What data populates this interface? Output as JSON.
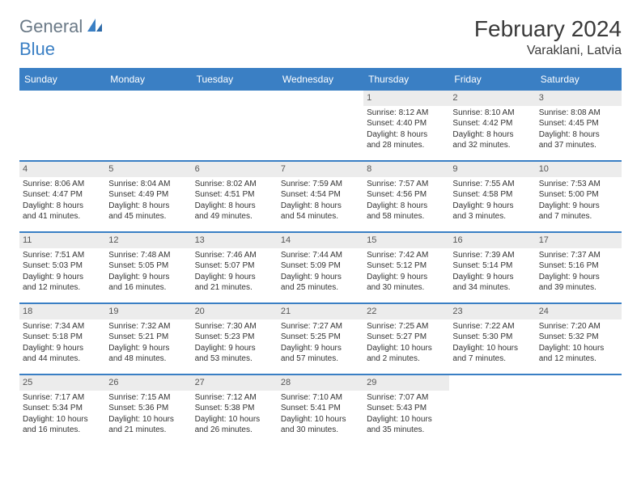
{
  "logo": {
    "text1": "General",
    "text2": "Blue"
  },
  "title": "February 2024",
  "location": "Varaklani, Latvia",
  "colors": {
    "accent": "#3a7fc4",
    "header_text": "#ffffff",
    "day_bar_bg": "#ececec",
    "text": "#333333",
    "logo_gray": "#6b7a87"
  },
  "weekdays": [
    "Sunday",
    "Monday",
    "Tuesday",
    "Wednesday",
    "Thursday",
    "Friday",
    "Saturday"
  ],
  "weeks": [
    [
      {
        "empty": true
      },
      {
        "empty": true
      },
      {
        "empty": true
      },
      {
        "empty": true
      },
      {
        "num": "1",
        "sunrise": "Sunrise: 8:12 AM",
        "sunset": "Sunset: 4:40 PM",
        "daylight1": "Daylight: 8 hours",
        "daylight2": "and 28 minutes."
      },
      {
        "num": "2",
        "sunrise": "Sunrise: 8:10 AM",
        "sunset": "Sunset: 4:42 PM",
        "daylight1": "Daylight: 8 hours",
        "daylight2": "and 32 minutes."
      },
      {
        "num": "3",
        "sunrise": "Sunrise: 8:08 AM",
        "sunset": "Sunset: 4:45 PM",
        "daylight1": "Daylight: 8 hours",
        "daylight2": "and 37 minutes."
      }
    ],
    [
      {
        "num": "4",
        "sunrise": "Sunrise: 8:06 AM",
        "sunset": "Sunset: 4:47 PM",
        "daylight1": "Daylight: 8 hours",
        "daylight2": "and 41 minutes."
      },
      {
        "num": "5",
        "sunrise": "Sunrise: 8:04 AM",
        "sunset": "Sunset: 4:49 PM",
        "daylight1": "Daylight: 8 hours",
        "daylight2": "and 45 minutes."
      },
      {
        "num": "6",
        "sunrise": "Sunrise: 8:02 AM",
        "sunset": "Sunset: 4:51 PM",
        "daylight1": "Daylight: 8 hours",
        "daylight2": "and 49 minutes."
      },
      {
        "num": "7",
        "sunrise": "Sunrise: 7:59 AM",
        "sunset": "Sunset: 4:54 PM",
        "daylight1": "Daylight: 8 hours",
        "daylight2": "and 54 minutes."
      },
      {
        "num": "8",
        "sunrise": "Sunrise: 7:57 AM",
        "sunset": "Sunset: 4:56 PM",
        "daylight1": "Daylight: 8 hours",
        "daylight2": "and 58 minutes."
      },
      {
        "num": "9",
        "sunrise": "Sunrise: 7:55 AM",
        "sunset": "Sunset: 4:58 PM",
        "daylight1": "Daylight: 9 hours",
        "daylight2": "and 3 minutes."
      },
      {
        "num": "10",
        "sunrise": "Sunrise: 7:53 AM",
        "sunset": "Sunset: 5:00 PM",
        "daylight1": "Daylight: 9 hours",
        "daylight2": "and 7 minutes."
      }
    ],
    [
      {
        "num": "11",
        "sunrise": "Sunrise: 7:51 AM",
        "sunset": "Sunset: 5:03 PM",
        "daylight1": "Daylight: 9 hours",
        "daylight2": "and 12 minutes."
      },
      {
        "num": "12",
        "sunrise": "Sunrise: 7:48 AM",
        "sunset": "Sunset: 5:05 PM",
        "daylight1": "Daylight: 9 hours",
        "daylight2": "and 16 minutes."
      },
      {
        "num": "13",
        "sunrise": "Sunrise: 7:46 AM",
        "sunset": "Sunset: 5:07 PM",
        "daylight1": "Daylight: 9 hours",
        "daylight2": "and 21 minutes."
      },
      {
        "num": "14",
        "sunrise": "Sunrise: 7:44 AM",
        "sunset": "Sunset: 5:09 PM",
        "daylight1": "Daylight: 9 hours",
        "daylight2": "and 25 minutes."
      },
      {
        "num": "15",
        "sunrise": "Sunrise: 7:42 AM",
        "sunset": "Sunset: 5:12 PM",
        "daylight1": "Daylight: 9 hours",
        "daylight2": "and 30 minutes."
      },
      {
        "num": "16",
        "sunrise": "Sunrise: 7:39 AM",
        "sunset": "Sunset: 5:14 PM",
        "daylight1": "Daylight: 9 hours",
        "daylight2": "and 34 minutes."
      },
      {
        "num": "17",
        "sunrise": "Sunrise: 7:37 AM",
        "sunset": "Sunset: 5:16 PM",
        "daylight1": "Daylight: 9 hours",
        "daylight2": "and 39 minutes."
      }
    ],
    [
      {
        "num": "18",
        "sunrise": "Sunrise: 7:34 AM",
        "sunset": "Sunset: 5:18 PM",
        "daylight1": "Daylight: 9 hours",
        "daylight2": "and 44 minutes."
      },
      {
        "num": "19",
        "sunrise": "Sunrise: 7:32 AM",
        "sunset": "Sunset: 5:21 PM",
        "daylight1": "Daylight: 9 hours",
        "daylight2": "and 48 minutes."
      },
      {
        "num": "20",
        "sunrise": "Sunrise: 7:30 AM",
        "sunset": "Sunset: 5:23 PM",
        "daylight1": "Daylight: 9 hours",
        "daylight2": "and 53 minutes."
      },
      {
        "num": "21",
        "sunrise": "Sunrise: 7:27 AM",
        "sunset": "Sunset: 5:25 PM",
        "daylight1": "Daylight: 9 hours",
        "daylight2": "and 57 minutes."
      },
      {
        "num": "22",
        "sunrise": "Sunrise: 7:25 AM",
        "sunset": "Sunset: 5:27 PM",
        "daylight1": "Daylight: 10 hours",
        "daylight2": "and 2 minutes."
      },
      {
        "num": "23",
        "sunrise": "Sunrise: 7:22 AM",
        "sunset": "Sunset: 5:30 PM",
        "daylight1": "Daylight: 10 hours",
        "daylight2": "and 7 minutes."
      },
      {
        "num": "24",
        "sunrise": "Sunrise: 7:20 AM",
        "sunset": "Sunset: 5:32 PM",
        "daylight1": "Daylight: 10 hours",
        "daylight2": "and 12 minutes."
      }
    ],
    [
      {
        "num": "25",
        "sunrise": "Sunrise: 7:17 AM",
        "sunset": "Sunset: 5:34 PM",
        "daylight1": "Daylight: 10 hours",
        "daylight2": "and 16 minutes."
      },
      {
        "num": "26",
        "sunrise": "Sunrise: 7:15 AM",
        "sunset": "Sunset: 5:36 PM",
        "daylight1": "Daylight: 10 hours",
        "daylight2": "and 21 minutes."
      },
      {
        "num": "27",
        "sunrise": "Sunrise: 7:12 AM",
        "sunset": "Sunset: 5:38 PM",
        "daylight1": "Daylight: 10 hours",
        "daylight2": "and 26 minutes."
      },
      {
        "num": "28",
        "sunrise": "Sunrise: 7:10 AM",
        "sunset": "Sunset: 5:41 PM",
        "daylight1": "Daylight: 10 hours",
        "daylight2": "and 30 minutes."
      },
      {
        "num": "29",
        "sunrise": "Sunrise: 7:07 AM",
        "sunset": "Sunset: 5:43 PM",
        "daylight1": "Daylight: 10 hours",
        "daylight2": "and 35 minutes."
      },
      {
        "empty": true
      },
      {
        "empty": true
      }
    ]
  ]
}
